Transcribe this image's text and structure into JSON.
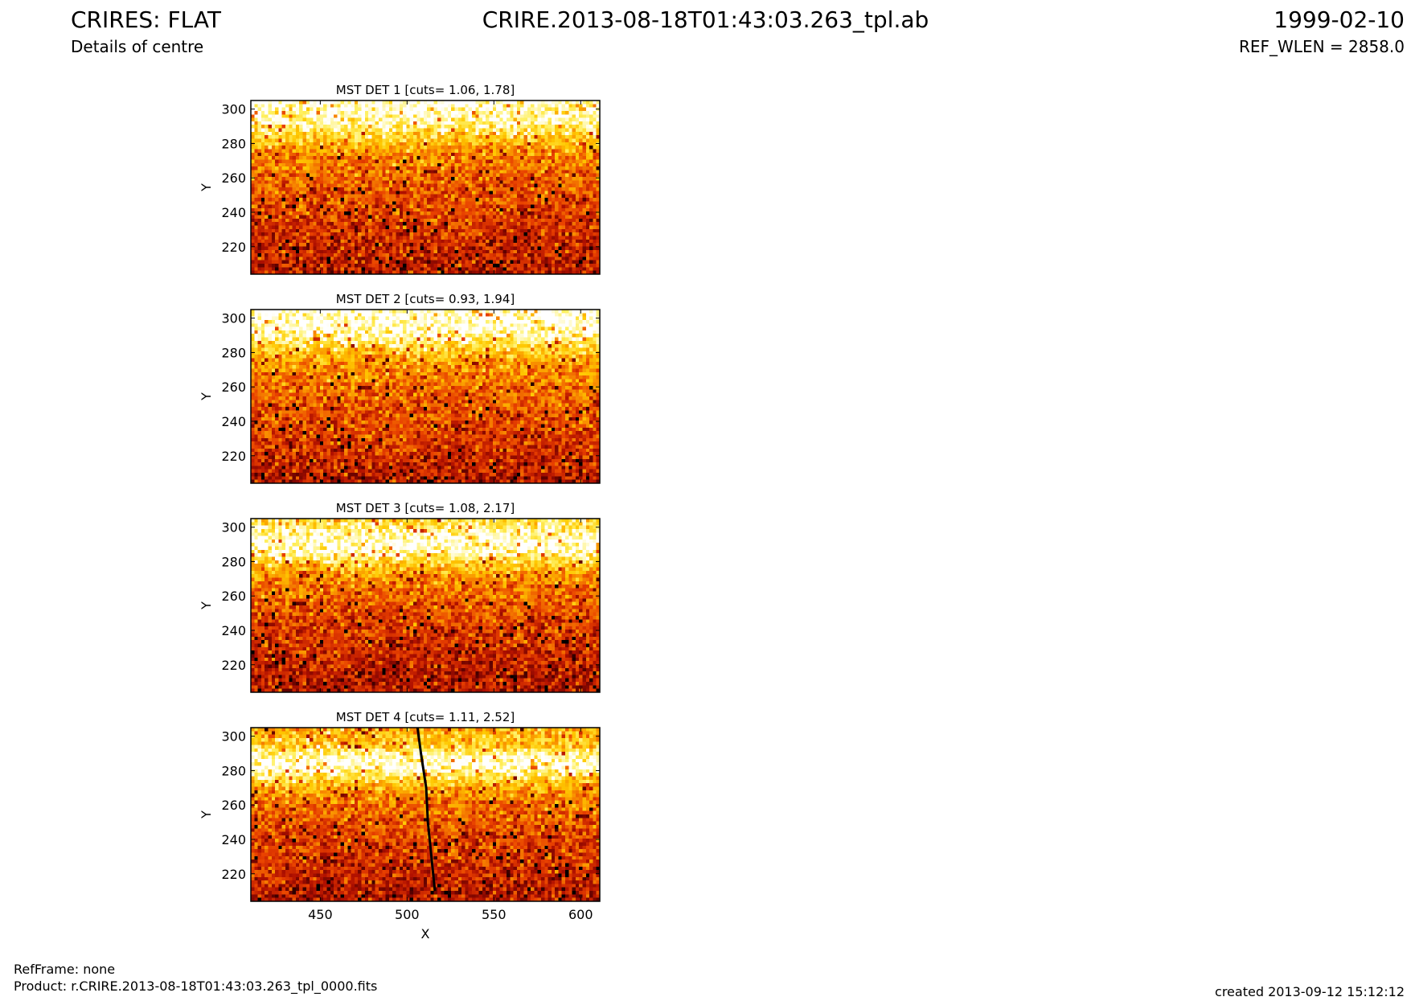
{
  "header": {
    "title": "CRIRES: FLAT",
    "subtitle": "Details of centre",
    "file": "CRIRE.2013-08-18T01:43:03.263_tpl.ab",
    "date": "1999-02-10",
    "ref_wlen": "REF_WLEN = 2858.0"
  },
  "footer": {
    "ref_frame": "RefFrame: none",
    "product": "Product: r.CRIRE.2013-08-18T01:43:03.263_tpl_0000.fits",
    "created": "created 2013-09-12 15:12:12"
  },
  "colors": {
    "colormap": [
      "#000000",
      "#5a0000",
      "#b01000",
      "#e84000",
      "#f88a00",
      "#ffc800",
      "#fff060",
      "#ffffff"
    ]
  },
  "chart_data": [
    {
      "type": "heatmap",
      "title": "MST DET 1 [cuts= 1.06, 1.78]",
      "xlabel": "",
      "ylabel": "Y",
      "xlim": [
        410,
        611
      ],
      "ylim": [
        204,
        305
      ],
      "xticks": [
        450,
        500,
        550,
        600
      ],
      "yticks": [
        220,
        240,
        260,
        280,
        300
      ],
      "cuts": [
        1.06,
        1.78
      ],
      "colormap": "hot",
      "row_profile": [
        {
          "y": 205,
          "level": 0.32
        },
        {
          "y": 220,
          "level": 0.36
        },
        {
          "y": 240,
          "level": 0.42
        },
        {
          "y": 260,
          "level": 0.5
        },
        {
          "y": 275,
          "level": 0.58
        },
        {
          "y": 283,
          "level": 0.75
        },
        {
          "y": 290,
          "level": 0.88
        },
        {
          "y": 296,
          "level": 0.95
        },
        {
          "y": 305,
          "level": 1.0
        }
      ]
    },
    {
      "type": "heatmap",
      "title": "MST DET 2 [cuts= 0.93, 1.94]",
      "xlabel": "",
      "ylabel": "Y",
      "xlim": [
        410,
        611
      ],
      "ylim": [
        204,
        305
      ],
      "xticks": [
        450,
        500,
        550,
        600
      ],
      "yticks": [
        220,
        240,
        260,
        280,
        300
      ],
      "cuts": [
        0.93,
        1.94
      ],
      "colormap": "hot",
      "row_profile": [
        {
          "y": 205,
          "level": 0.3
        },
        {
          "y": 220,
          "level": 0.38
        },
        {
          "y": 240,
          "level": 0.44
        },
        {
          "y": 260,
          "level": 0.52
        },
        {
          "y": 275,
          "level": 0.62
        },
        {
          "y": 283,
          "level": 0.78
        },
        {
          "y": 290,
          "level": 0.92
        },
        {
          "y": 296,
          "level": 1.0
        },
        {
          "y": 305,
          "level": 1.0
        }
      ]
    },
    {
      "type": "heatmap",
      "title": "MST DET 3 [cuts= 1.08, 2.17]",
      "xlabel": "",
      "ylabel": "Y",
      "xlim": [
        410,
        611
      ],
      "ylim": [
        204,
        305
      ],
      "xticks": [
        450,
        500,
        550,
        600
      ],
      "yticks": [
        220,
        240,
        260,
        280,
        300
      ],
      "cuts": [
        1.08,
        2.17
      ],
      "colormap": "hot",
      "row_profile": [
        {
          "y": 205,
          "level": 0.3
        },
        {
          "y": 220,
          "level": 0.34
        },
        {
          "y": 240,
          "level": 0.4
        },
        {
          "y": 260,
          "level": 0.5
        },
        {
          "y": 272,
          "level": 0.6
        },
        {
          "y": 280,
          "level": 0.78
        },
        {
          "y": 286,
          "level": 0.95
        },
        {
          "y": 292,
          "level": 1.0
        },
        {
          "y": 299,
          "level": 0.9
        },
        {
          "y": 305,
          "level": 0.78
        }
      ]
    },
    {
      "type": "heatmap",
      "title": "MST DET 4 [cuts= 1.11, 2.52]",
      "xlabel": "X",
      "ylabel": "Y",
      "xlim": [
        410,
        611
      ],
      "ylim": [
        204,
        305
      ],
      "xticks": [
        450,
        500,
        550,
        600
      ],
      "yticks": [
        220,
        240,
        260,
        280,
        300
      ],
      "cuts": [
        1.11,
        2.52
      ],
      "colormap": "hot",
      "row_profile": [
        {
          "y": 205,
          "level": 0.3
        },
        {
          "y": 220,
          "level": 0.36
        },
        {
          "y": 240,
          "level": 0.42
        },
        {
          "y": 260,
          "level": 0.52
        },
        {
          "y": 270,
          "level": 0.64
        },
        {
          "y": 277,
          "level": 0.85
        },
        {
          "y": 283,
          "level": 1.0
        },
        {
          "y": 289,
          "level": 0.95
        },
        {
          "y": 294,
          "level": 0.75
        },
        {
          "y": 305,
          "level": 0.66
        }
      ],
      "dark_trace": [
        {
          "x": 506,
          "y": 305
        },
        {
          "x": 508,
          "y": 290
        },
        {
          "x": 511,
          "y": 270
        },
        {
          "x": 512,
          "y": 250
        },
        {
          "x": 514,
          "y": 230
        },
        {
          "x": 516,
          "y": 210
        }
      ]
    }
  ]
}
